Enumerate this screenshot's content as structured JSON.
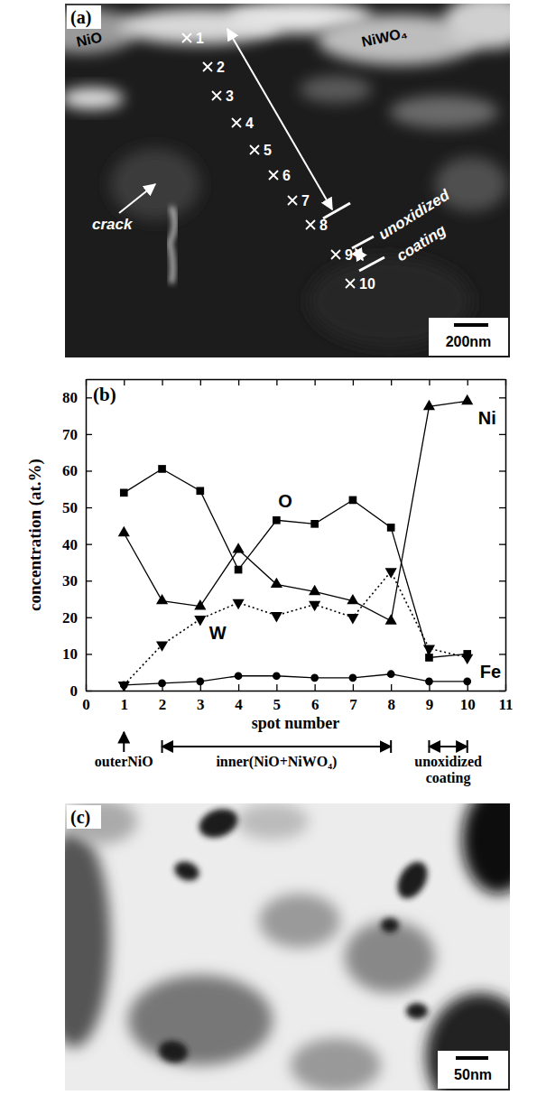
{
  "panels": {
    "a": {
      "label": "(a)",
      "phases": [
        "NiO",
        "NiWO₄"
      ],
      "crack": "crack",
      "coating": [
        "unoxidized",
        "coating"
      ],
      "spots": [
        "1",
        "2",
        "3",
        "4",
        "5",
        "6",
        "7",
        "8",
        "9",
        "10"
      ],
      "scale_bar": "200nm"
    },
    "b": {
      "label": "(b)"
    },
    "c": {
      "label": "(c)",
      "scale_bar": "50nm"
    }
  },
  "chart_data": {
    "type": "line",
    "x_label": "spot number",
    "y_label": "concentration (at.%)",
    "x": [
      1,
      2,
      3,
      4,
      5,
      6,
      7,
      8,
      9,
      10
    ],
    "xlim": [
      0,
      11
    ],
    "xticks": [
      0,
      1,
      2,
      3,
      4,
      5,
      6,
      7,
      8,
      9,
      10,
      11
    ],
    "ylim": [
      0,
      85
    ],
    "yticks": [
      0,
      10,
      20,
      30,
      40,
      50,
      60,
      70,
      80
    ],
    "series": [
      {
        "name": "O",
        "color": "#000000",
        "marker": "square",
        "line_style": "solid",
        "values": [
          54,
          60.5,
          54.5,
          33,
          46.5,
          45.5,
          52,
          44.5,
          9,
          10
        ]
      },
      {
        "name": "Ni",
        "color": "#000000",
        "marker": "triangle-up",
        "line_style": "solid",
        "values": [
          43,
          24.5,
          23,
          38.5,
          29,
          27,
          24.5,
          19,
          77.5,
          79
        ]
      },
      {
        "name": "W",
        "color": "#000000",
        "marker": "triangle-down",
        "line_style": "dotted",
        "values": [
          1.5,
          12.5,
          19.5,
          24,
          20.5,
          23.5,
          20,
          32.5,
          11.5,
          9
        ]
      },
      {
        "name": "Fe",
        "color": "#000000",
        "marker": "circle",
        "line_style": "solid",
        "values": [
          1.5,
          2,
          2.5,
          4,
          4,
          3.5,
          3.5,
          4.5,
          2.5,
          2.5
        ]
      }
    ],
    "annotations": [
      {
        "text": "outerNiO",
        "x": [
          1,
          1
        ]
      },
      {
        "text": "inner(NiO+NiWO₄)",
        "x": [
          2,
          8
        ]
      },
      {
        "text": "unoxidized coating",
        "x": [
          9,
          10
        ]
      }
    ]
  }
}
